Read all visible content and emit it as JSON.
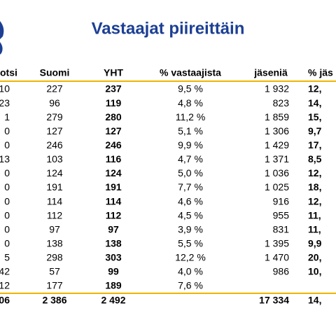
{
  "title": "Vastaajat piireittäin",
  "table": {
    "header": [
      "otsi",
      "Suomi",
      "YHT",
      "% vastaajista",
      "jäseniä",
      "% jäs"
    ],
    "rows": [
      [
        "10",
        "227",
        "237",
        "9,5 %",
        "1 932",
        "12,"
      ],
      [
        "23",
        "96",
        "119",
        "4,8 %",
        "823",
        "14,"
      ],
      [
        "1",
        "279",
        "280",
        "11,2 %",
        "1 859",
        "15,"
      ],
      [
        "0",
        "127",
        "127",
        "5,1 %",
        "1 306",
        "9,7"
      ],
      [
        "0",
        "246",
        "246",
        "9,9 %",
        "1 429",
        "17,"
      ],
      [
        "13",
        "103",
        "116",
        "4,7 %",
        "1 371",
        "8,5"
      ],
      [
        "0",
        "124",
        "124",
        "5,0 %",
        "1 036",
        "12,"
      ],
      [
        "0",
        "191",
        "191",
        "7,7 %",
        "1 025",
        "18,"
      ],
      [
        "0",
        "114",
        "114",
        "4,6 %",
        "916",
        "12,"
      ],
      [
        "0",
        "112",
        "112",
        "4,5 %",
        "955",
        "11,"
      ],
      [
        "0",
        "97",
        "97",
        "3,9 %",
        "831",
        "11,"
      ],
      [
        "0",
        "138",
        "138",
        "5,5 %",
        "1 395",
        "9,9"
      ],
      [
        "5",
        "298",
        "303",
        "12,2 %",
        "1 470",
        "20,"
      ],
      [
        "42",
        "57",
        "99",
        "4,0 %",
        "986",
        "10,"
      ],
      [
        "12",
        "177",
        "189",
        "7,6 %",
        null,
        null
      ]
    ],
    "total": [
      "06",
      "2 386",
      "2 492",
      null,
      "17 334",
      "14,"
    ]
  }
}
